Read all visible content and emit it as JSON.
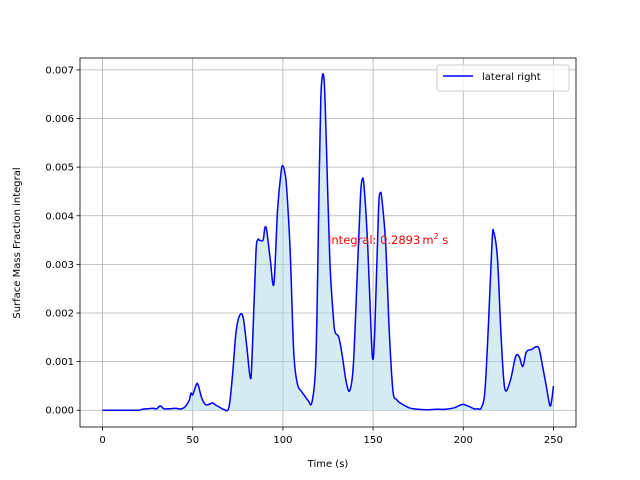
{
  "chart_data": {
    "type": "area",
    "title": "",
    "xlabel": "Time (s)",
    "ylabel": "Surface Mass Fraction integral",
    "xlim": [
      -12.5,
      262.5
    ],
    "ylim": [
      -0.000345,
      0.007245
    ],
    "xticks": [
      0,
      50,
      100,
      150,
      200,
      250
    ],
    "yticks": [
      0.0,
      0.001,
      0.002,
      0.003,
      0.004,
      0.005,
      0.006,
      0.007
    ],
    "xtick_labels": [
      "0",
      "50",
      "100",
      "150",
      "200",
      "250"
    ],
    "ytick_labels": [
      "0.000",
      "0.001",
      "0.002",
      "0.003",
      "0.004",
      "0.005",
      "0.006",
      "0.007"
    ],
    "grid": true,
    "legend_position": "upper right",
    "series": [
      {
        "name": "lateral right",
        "color": "#0000ff",
        "fill_color": "#add8e6",
        "x": [
          0,
          10,
          20,
          22,
          25,
          28,
          30,
          32,
          34,
          36,
          38,
          40,
          42,
          44,
          46,
          48,
          49,
          50,
          52,
          53,
          55,
          57,
          59,
          61,
          63,
          65,
          67,
          70,
          72,
          74,
          76,
          78,
          80,
          82,
          83,
          85,
          86,
          87,
          89,
          90,
          91,
          93,
          95,
          97,
          99,
          100,
          101,
          102,
          104,
          106,
          108,
          110,
          112,
          114,
          116,
          118,
          119,
          120,
          121,
          122,
          123,
          124,
          126,
          128,
          129,
          131,
          133,
          135,
          137,
          139,
          141,
          143,
          144,
          145,
          147,
          149,
          150,
          151,
          153,
          154,
          155,
          157,
          159,
          161,
          163,
          165,
          170,
          175,
          180,
          185,
          190,
          195,
          198,
          200,
          203,
          206,
          208,
          210,
          212,
          214,
          216,
          217,
          219,
          221,
          223,
          226,
          229,
          231,
          233,
          235,
          238,
          240,
          242,
          244,
          246,
          248,
          249,
          250
        ],
        "y": [
          0.0,
          0.0,
          0.0,
          2e-05,
          3e-05,
          4e-05,
          3e-05,
          9e-05,
          3e-05,
          3e-05,
          3e-05,
          4e-05,
          3e-05,
          3e-05,
          8e-05,
          0.0002,
          0.00035,
          0.00032,
          0.00053,
          0.00052,
          0.00025,
          0.00012,
          0.00012,
          0.00015,
          0.0001,
          6e-05,
          2e-05,
          5e-05,
          0.0007,
          0.0016,
          0.00195,
          0.0019,
          0.0013,
          0.00065,
          0.0012,
          0.0032,
          0.0035,
          0.0035,
          0.0035,
          0.00375,
          0.0037,
          0.0031,
          0.0026,
          0.0041,
          0.0049,
          0.00503,
          0.0049,
          0.0046,
          0.0033,
          0.0012,
          0.00055,
          0.0004,
          0.0003,
          0.0002,
          0.00015,
          0.0008,
          0.0022,
          0.0045,
          0.0064,
          0.0069,
          0.0067,
          0.0056,
          0.0031,
          0.0019,
          0.0016,
          0.0015,
          0.0011,
          0.0006,
          0.0004,
          0.0009,
          0.0026,
          0.0044,
          0.00475,
          0.0046,
          0.0034,
          0.0015,
          0.00105,
          0.0017,
          0.0041,
          0.00447,
          0.0043,
          0.0034,
          0.0016,
          0.0004,
          0.00022,
          0.00015,
          5e-05,
          2e-05,
          1e-05,
          2e-05,
          2e-05,
          5e-05,
          0.0001,
          0.00012,
          8e-05,
          3e-05,
          3e-05,
          5e-05,
          0.0004,
          0.0018,
          0.0035,
          0.00365,
          0.0031,
          0.0015,
          0.00045,
          0.0006,
          0.0011,
          0.0011,
          0.0009,
          0.0012,
          0.00125,
          0.0013,
          0.00127,
          0.0009,
          0.0005,
          0.0001,
          0.0002,
          0.0005
        ]
      }
    ],
    "annotation": {
      "text": "Integral: 0.2893",
      "unit_base": "m",
      "unit_sup": "2",
      "unit_tail": " s",
      "color": "#ff0000",
      "x": 125,
      "y": 0.0035
    }
  }
}
